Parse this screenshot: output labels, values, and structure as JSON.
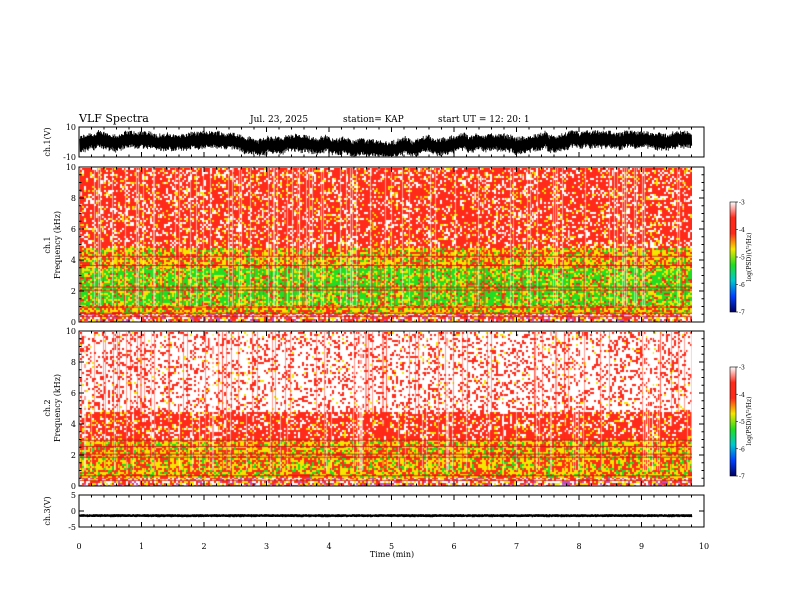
{
  "header": {
    "title": "VLF Spectra",
    "date": "Jul. 23, 2025",
    "station": "station= KAP",
    "start": "start  UT =   12: 20: 1"
  },
  "colors": {
    "spec_low": "#22dd22",
    "spec_mid": "#f5e600",
    "spec_high": "#ff2a1a",
    "spec_top": "#ffffff",
    "trace": "#000000"
  },
  "chart_data": [
    {
      "type": "line",
      "name": "ch.1 waveform",
      "ylabel": "ch.1(V)",
      "ylim": [
        -10,
        10
      ],
      "yticks": [
        "10",
        "-10"
      ],
      "xlim": [
        0,
        10
      ],
      "note": "noisy voltage trace spanning 0 to ~9.8 min, mostly between -9 and 5 V"
    },
    {
      "type": "heatmap",
      "name": "ch.1 spectrogram",
      "ylabel": "ch.1\nFrequency (kHz)",
      "ylabel_lines": [
        "ch.1",
        "Frequency (kHz)"
      ],
      "ylim": [
        0,
        10
      ],
      "yticks": [
        "0",
        "2",
        "4",
        "6",
        "8",
        "10"
      ],
      "xlim": [
        0,
        9.8
      ],
      "bands": [
        {
          "from": 0,
          "to": 0.6,
          "level": "mixed"
        },
        {
          "from": 0.6,
          "to": 1.2,
          "level": "mid"
        },
        {
          "from": 1.2,
          "to": 3.6,
          "level": "low"
        },
        {
          "from": 3.6,
          "to": 4.8,
          "level": "mid"
        },
        {
          "from": 4.8,
          "to": 10,
          "level": "high"
        }
      ],
      "lines_khz": [
        0.4,
        0.6,
        1.0,
        2.1,
        2.3,
        3.7,
        4.3
      ],
      "colorbar": {
        "label": "log(PSD)(V²/Hz)",
        "range": [
          -7,
          -3
        ],
        "ticks": [
          "-3",
          "-4",
          "-5",
          "-6",
          "-7"
        ]
      }
    },
    {
      "type": "heatmap",
      "name": "ch.2 spectrogram",
      "ylabel": "ch.2\nFrequency (kHz)",
      "ylabel_lines": [
        "ch.2",
        "Frequency (kHz)"
      ],
      "ylim": [
        0,
        10
      ],
      "yticks": [
        "0",
        "2",
        "4",
        "6",
        "8",
        "10"
      ],
      "xlim": [
        0,
        9.8
      ],
      "bands": [
        {
          "from": 0,
          "to": 0.6,
          "level": "mixed"
        },
        {
          "from": 0.6,
          "to": 3.0,
          "level": "mid"
        },
        {
          "from": 3.0,
          "to": 4.8,
          "level": "high"
        },
        {
          "from": 4.8,
          "to": 10,
          "level": "top"
        }
      ],
      "lines_khz": [
        0.4,
        0.7,
        1.9,
        2.1,
        2.6,
        3.0
      ],
      "colorbar": {
        "label": "log(PSD)(V²/Hz)",
        "range": [
          -7,
          -3
        ],
        "ticks": [
          "-3",
          "-4",
          "-5",
          "-6",
          "-7"
        ]
      }
    },
    {
      "type": "line",
      "name": "ch.3 waveform",
      "ylabel": "ch.3(V)",
      "ylim": [
        -5,
        5
      ],
      "yticks": [
        "5",
        "0",
        "-5"
      ],
      "xlim": [
        0,
        10
      ],
      "note": "dense trace confined to about -2 to -1 V"
    }
  ],
  "xaxis": {
    "label": "Time (min)",
    "range": [
      0,
      10
    ],
    "ticks": [
      "0",
      "1",
      "2",
      "3",
      "4",
      "5",
      "6",
      "7",
      "8",
      "9",
      "10"
    ]
  }
}
